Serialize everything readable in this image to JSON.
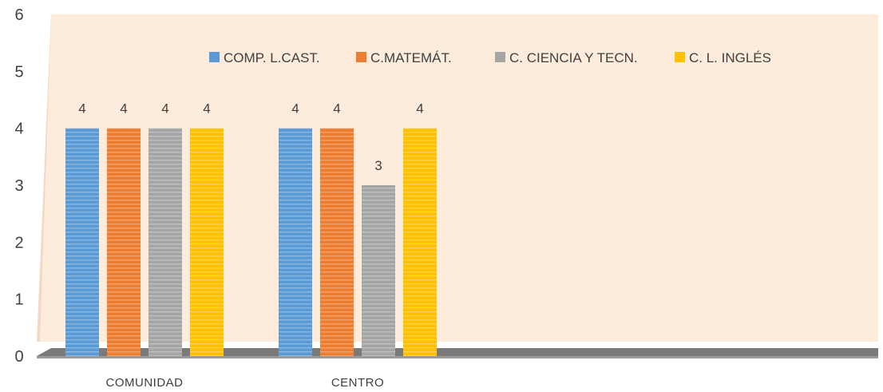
{
  "chart_data": {
    "type": "bar",
    "title": "",
    "xlabel": "",
    "ylabel": "",
    "categories": [
      "COMUNIDAD",
      "CENTRO"
    ],
    "series": [
      {
        "name": "COMP. L.CAST.",
        "values": [
          4,
          4
        ]
      },
      {
        "name": "C.MATEMÁT.",
        "values": [
          4,
          4
        ]
      },
      {
        "name": "C. CIENCIA Y TECN.",
        "values": [
          4,
          3
        ]
      },
      {
        "name": "C. L. INGLÉS",
        "values": [
          4,
          4
        ]
      }
    ],
    "ylim": [
      0,
      6
    ],
    "yticks": [
      "0",
      "1",
      "2",
      "3",
      "4",
      "5",
      "6"
    ],
    "data_labels": true,
    "grid": false,
    "legend_position": "top",
    "colors": {
      "series": [
        "#5b9bd5",
        "#ed7d31",
        "#a5a5a5",
        "#ffc000"
      ],
      "plot_background": "#fdebdc",
      "floor": "#737373"
    }
  }
}
